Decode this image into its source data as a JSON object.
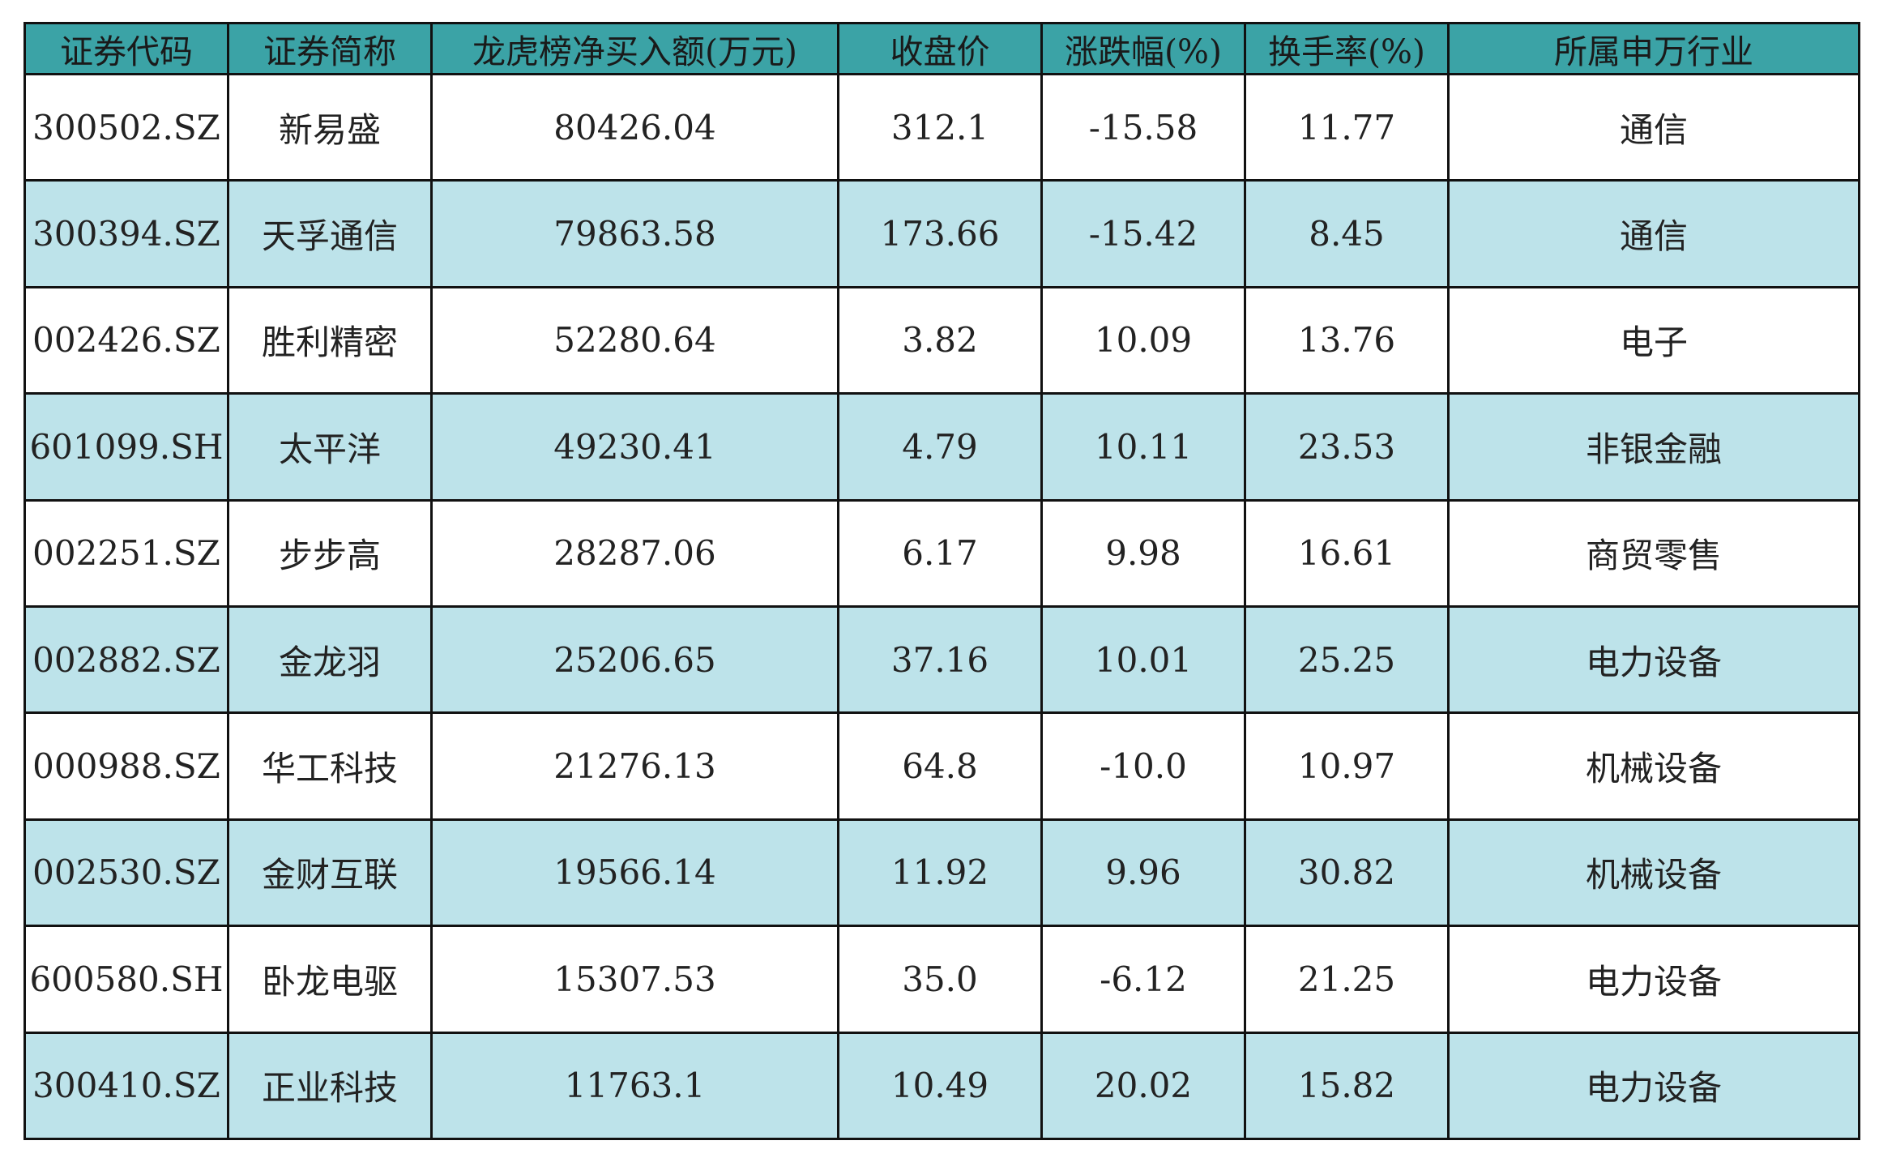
{
  "table": {
    "headers": [
      "证券代码",
      "证券简称",
      "龙虎榜净买入额(万元)",
      "收盘价",
      "涨跌幅(%)",
      "换手率(%)",
      "所属申万行业"
    ],
    "rows": [
      [
        "300502.SZ",
        "新易盛",
        "80426.04",
        "312.1",
        "-15.58",
        "11.77",
        "通信"
      ],
      [
        "300394.SZ",
        "天孚通信",
        "79863.58",
        "173.66",
        "-15.42",
        "8.45",
        "通信"
      ],
      [
        "002426.SZ",
        "胜利精密",
        "52280.64",
        "3.82",
        "10.09",
        "13.76",
        "电子"
      ],
      [
        "601099.SH",
        "太平洋",
        "49230.41",
        "4.79",
        "10.11",
        "23.53",
        "非银金融"
      ],
      [
        "002251.SZ",
        "步步高",
        "28287.06",
        "6.17",
        "9.98",
        "16.61",
        "商贸零售"
      ],
      [
        "002882.SZ",
        "金龙羽",
        "25206.65",
        "37.16",
        "10.01",
        "25.25",
        "电力设备"
      ],
      [
        "000988.SZ",
        "华工科技",
        "21276.13",
        "64.8",
        "-10.0",
        "10.97",
        "机械设备"
      ],
      [
        "002530.SZ",
        "金财互联",
        "19566.14",
        "11.92",
        "9.96",
        "30.82",
        "机械设备"
      ],
      [
        "600580.SH",
        "卧龙电驱",
        "15307.53",
        "35.0",
        "-6.12",
        "21.25",
        "电力设备"
      ],
      [
        "300410.SZ",
        "正业科技",
        "11763.1",
        "10.49",
        "20.02",
        "15.82",
        "电力设备"
      ]
    ]
  }
}
